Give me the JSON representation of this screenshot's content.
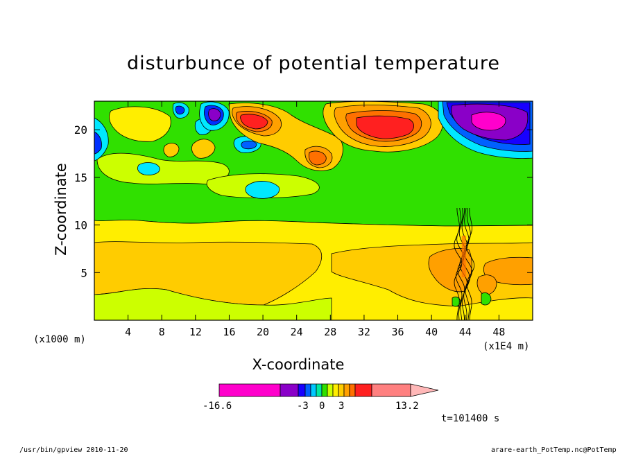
{
  "chart_data": {
    "type": "heatmap",
    "title": "disturbunce of potential temperature",
    "xlabel": "X-coordinate",
    "ylabel": "Z-coordinate",
    "x_unit": "(x1000 m)",
    "x_unit_right": "(x1E4 m)",
    "xlim": [
      0,
      52
    ],
    "ylim": [
      0,
      23
    ],
    "x_ticks": [
      4,
      8,
      12,
      16,
      20,
      24,
      28,
      32,
      36,
      40,
      44,
      48
    ],
    "y_ticks": [
      5,
      10,
      15,
      20
    ],
    "colorbar": {
      "min_label": "-16.6",
      "mid_labels": [
        "-3",
        "0",
        "3"
      ],
      "max_label": "13.2",
      "colors": [
        "#ff00cc",
        "#8a00c8",
        "#1800ff",
        "#0060ff",
        "#00c8ff",
        "#00e8a0",
        "#30e000",
        "#ccff00",
        "#ffee00",
        "#ffcc00",
        "#ffa000",
        "#ff7000",
        "#ff2020",
        "#ff8080",
        "#ffb8b8"
      ]
    },
    "layers": [
      {
        "z_range": [
          0,
          2.5
        ],
        "value": "0 to 1"
      },
      {
        "z_range": [
          2.5,
          8
        ],
        "value": "1 to 2"
      },
      {
        "z_range": [
          8,
          10.5
        ],
        "value": "0 to 1"
      },
      {
        "z_range": [
          10.5,
          16.5
        ],
        "value": "-1 to 0"
      },
      {
        "z_range": [
          16.5,
          23
        ],
        "value": "-4 to 7"
      }
    ]
  },
  "time_label": "t=101400 s",
  "footer_left": "/usr/bin/gpview   2010-11-20",
  "footer_right": "arare-earth_PotTemp.nc@PotTemp"
}
